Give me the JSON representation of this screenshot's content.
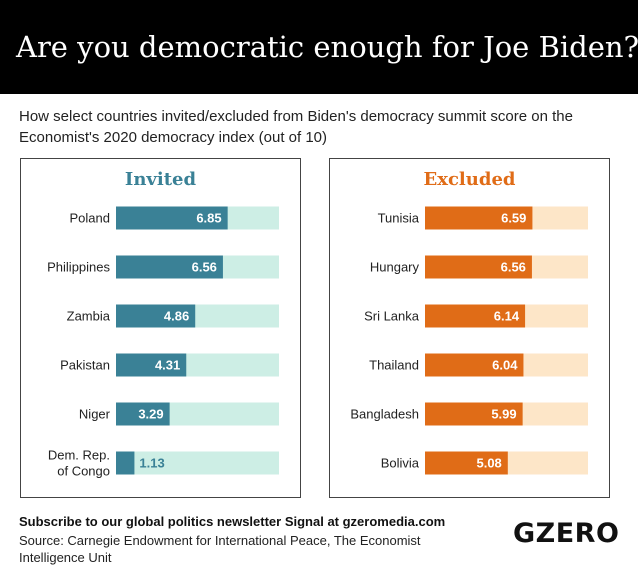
{
  "header": {
    "title": "Are you democratic enough for Joe Biden?",
    "subtitle": "How select countries invited/excluded from Biden's democracy summit score on the Economist's 2020 democracy index (out of 10)"
  },
  "colors": {
    "invited_bar": "#3a8196",
    "invited_track": "#cdeee5",
    "excluded_bar": "#e06c17",
    "excluded_track": "#fde6c8"
  },
  "chart_data": [
    {
      "type": "bar",
      "orientation": "horizontal",
      "title": "Invited",
      "categories": [
        "Poland",
        "Philippines",
        "Zambia",
        "Pakistan",
        "Niger",
        "Dem. Rep. of Congo"
      ],
      "values": [
        6.85,
        6.56,
        4.86,
        4.31,
        3.29,
        1.13
      ],
      "labels": [
        "6.85",
        "6.56",
        "4.86",
        "4.31",
        "3.29",
        "1.13"
      ],
      "xlim": [
        0,
        10
      ],
      "grid": false
    },
    {
      "type": "bar",
      "orientation": "horizontal",
      "title": "Excluded",
      "categories": [
        "Tunisia",
        "Hungary",
        "Sri Lanka",
        "Thailand",
        "Bangladesh",
        "Bolivia"
      ],
      "values": [
        6.59,
        6.56,
        6.14,
        6.04,
        5.99,
        5.08
      ],
      "labels": [
        "6.59",
        "6.56",
        "6.14",
        "6.04",
        "5.99",
        "5.08"
      ],
      "xlim": [
        0,
        10
      ],
      "grid": false
    }
  ],
  "footer": {
    "cta": "Subscribe to our global politics newsletter Signal at gzeromedia.com",
    "source": "Source: Carnegie Endowment for International Peace, The Economist Intelligence Unit",
    "logo": "GZERO"
  }
}
